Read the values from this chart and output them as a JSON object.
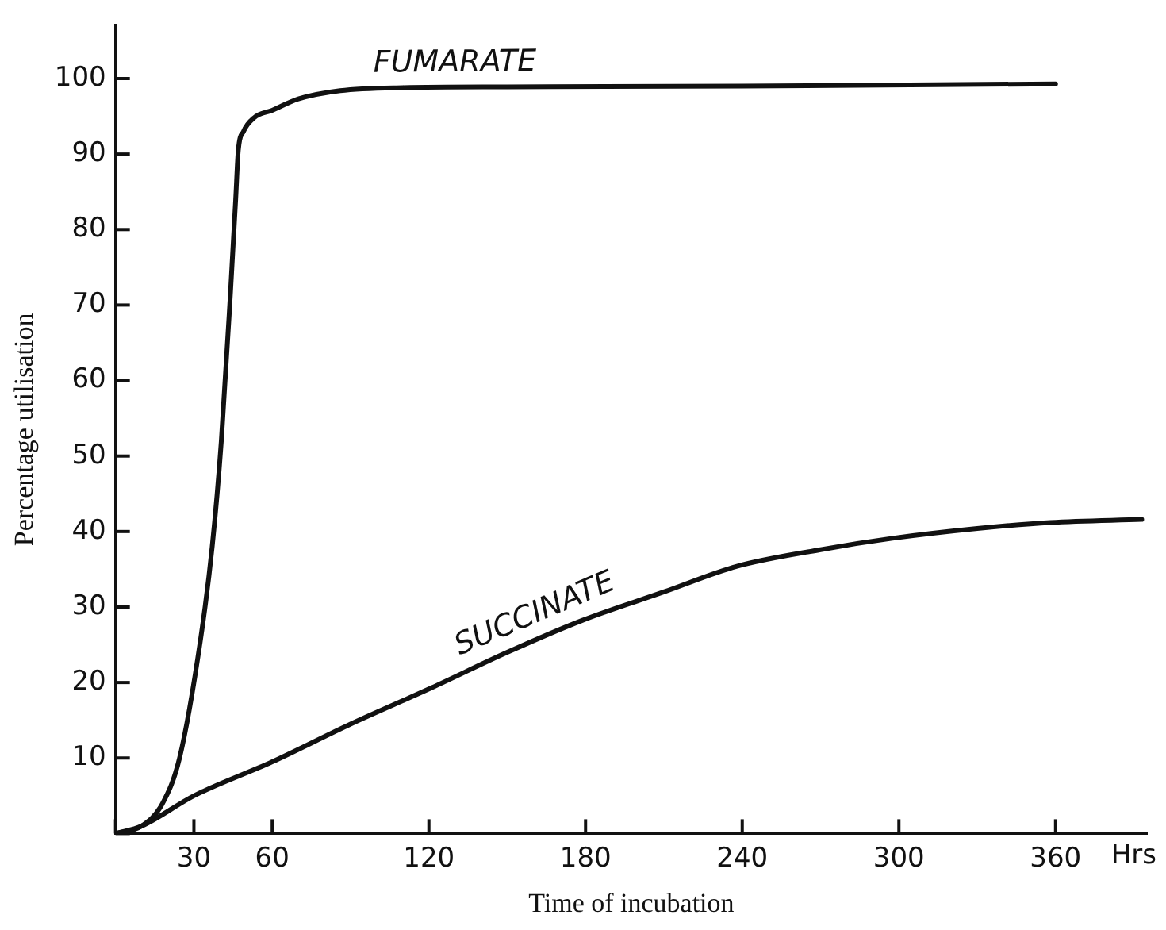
{
  "chart_data": {
    "type": "line",
    "xlabel": "Time of incubation",
    "ylabel": "Percentage utilisation",
    "annotations": [
      "Hrs"
    ],
    "xlim": [
      0,
      395
    ],
    "ylim": [
      0,
      107
    ],
    "xticks": [
      {
        "value": 0,
        "label": null
      },
      30,
      60,
      120,
      180,
      240,
      300,
      360
    ],
    "yticks": [
      {
        "value": 0,
        "label": null
      },
      10,
      20,
      30,
      40,
      50,
      60,
      70,
      80,
      90,
      100
    ],
    "grid": false,
    "legend": false,
    "marker": "none",
    "line_style": "solid",
    "series": [
      {
        "name": "FUMARATE",
        "color": "#111111",
        "x": [
          0,
          10,
          18,
          24.5,
          32.5,
          37,
          40.5,
          44,
          46,
          47,
          49,
          53,
          60,
          70,
          86,
          110,
          150,
          240,
          360
        ],
        "values": [
          0,
          1,
          4,
          10,
          25.6,
          38,
          52,
          71.6,
          84,
          90.5,
          93,
          94.8,
          95.8,
          97.3,
          98.4,
          98.8,
          98.9,
          99,
          99.3
        ]
      },
      {
        "name": "SUCCINATE",
        "color": "#111111",
        "x": [
          0,
          10,
          30,
          60,
          90,
          121,
          150,
          178.5,
          210,
          238,
          270,
          297.5,
          330,
          358,
          393
        ],
        "values": [
          0,
          1,
          5,
          9.5,
          14.5,
          19.3,
          24,
          28.2,
          32,
          35.4,
          37.6,
          39.1,
          40.4,
          41.2,
          41.6
        ]
      }
    ]
  }
}
